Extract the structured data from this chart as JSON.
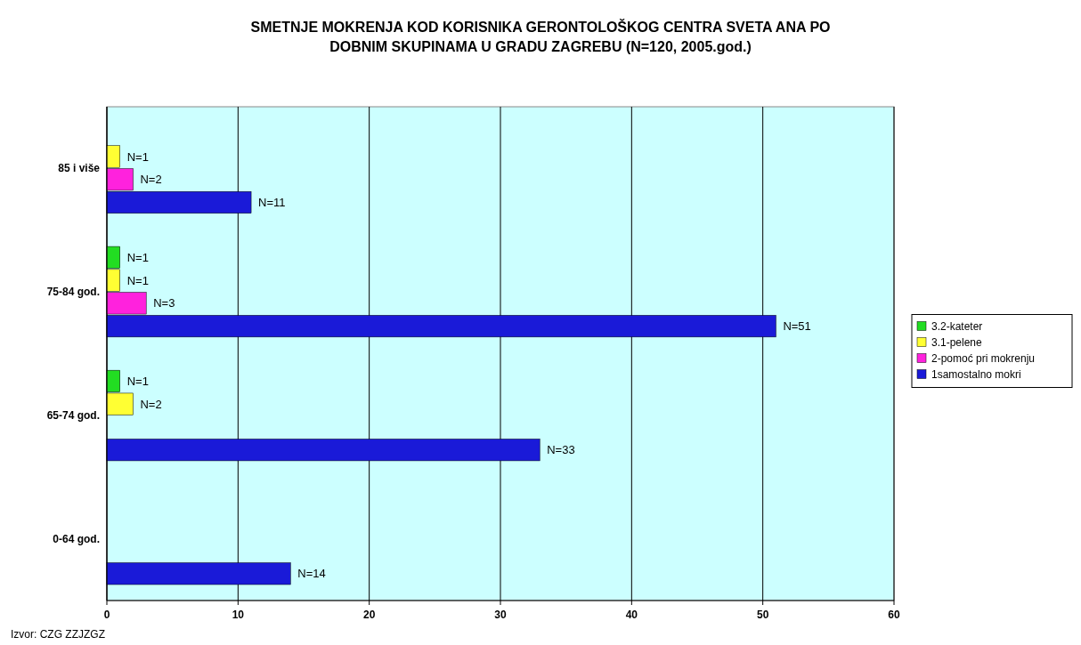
{
  "chart_data": {
    "type": "bar",
    "orientation": "horizontal",
    "title": "SMETNJE MOKRENJA KOD KORISNIKA GERONTOLOŠKOG CENTRA SVETA ANA PO DOBNIM SKUPINAMA U GRADU ZAGREBU (N=120, 2005.god.)",
    "categories": [
      "85 i više",
      "75-84 god.",
      "65-74 god.",
      "0-64 god."
    ],
    "series": [
      {
        "name": "3.2-kateter",
        "color": "#22dd22",
        "values": [
          null,
          1,
          1,
          null
        ],
        "value_labels": [
          null,
          "N=1",
          "N=1",
          null
        ]
      },
      {
        "name": "3.1-pelene",
        "color": "#ffff33",
        "values": [
          1,
          1,
          2,
          null
        ],
        "value_labels": [
          "N=1",
          "N=1",
          "N=2",
          null
        ]
      },
      {
        "name": "2-pomoć pri mokrenju",
        "color": "#ff22dd",
        "values": [
          2,
          3,
          null,
          null
        ],
        "value_labels": [
          "N=2",
          "N=3",
          null,
          null
        ]
      },
      {
        "name": "1samostalno mokri",
        "color": "#1a1ad8",
        "values": [
          11,
          51,
          33,
          14
        ],
        "value_labels": [
          "N=11",
          "N=51",
          "N=33",
          "N=14"
        ]
      }
    ],
    "xlim": [
      0,
      60
    ],
    "xticks": [
      0,
      10,
      20,
      30,
      40,
      50,
      60
    ],
    "grid": "x",
    "legend": "right",
    "annotations": [
      "Izvor: CZG ZZJZGZ"
    ]
  }
}
